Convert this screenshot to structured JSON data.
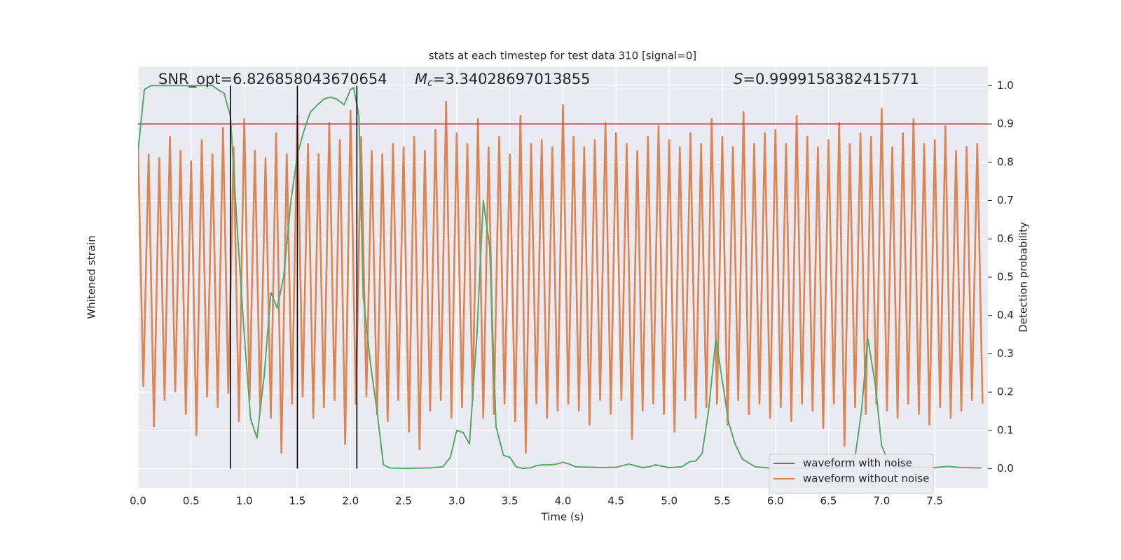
{
  "chart_data": {
    "type": "line",
    "title": "stats at each timestep for test data 310 [signal=0]",
    "x_label": "Time (s)",
    "y_label": "Whitened strain",
    "y2_label": "Detection probability",
    "xlim": [
      0,
      8
    ],
    "xticks": [
      {
        "value": 0,
        "label": "0.0"
      },
      0.5,
      {
        "value": 1,
        "label": "1.0"
      },
      1.5,
      {
        "value": 2,
        "label": "2.0"
      },
      2.5,
      {
        "value": 3,
        "label": "3.0"
      },
      3.5,
      {
        "value": 4,
        "label": "4.0"
      },
      4.5,
      {
        "value": 5,
        "label": "5.0"
      },
      5.5,
      {
        "value": 6,
        "label": "6.0"
      },
      6.5,
      {
        "value": 7,
        "label": "7.0"
      },
      7.5
    ],
    "ylim": [
      -1.2,
      1.2
    ],
    "y2lim": [
      -0.05,
      1.05
    ],
    "y2ticks": [
      {
        "value": 0,
        "label": "0.0"
      },
      0.1,
      0.2,
      0.3,
      0.4,
      0.5,
      0.6,
      0.7,
      0.8,
      0.9,
      {
        "value": 1,
        "label": "1.0"
      }
    ],
    "grid": true,
    "legend": "lower right",
    "annotations": {
      "snr": "SNR_opt=6.826858043670654",
      "mc": {
        "symbol": "M",
        "sub": "c",
        "text": "=3.34028697013855"
      },
      "s": {
        "symbol": "S",
        "text": "=0.9999158382415771"
      }
    },
    "hline": {
      "value": 0.9,
      "color": "#c44e52"
    },
    "vlines": {
      "values": [
        0.87,
        1.5,
        2.06
      ],
      "color": "#000000",
      "span": [
        0,
        1
      ]
    },
    "series": [
      {
        "name": "waveform with noise",
        "color": "#4c72b0"
      },
      {
        "name": "waveform without noise",
        "color": "#dd8452",
        "x": [
          0,
          0.05,
          0.1,
          0.15,
          0.2,
          0.25,
          0.3,
          0.35,
          0.4,
          0.45,
          0.5,
          0.55,
          0.6,
          0.65,
          0.7,
          0.75,
          0.8,
          0.85,
          0.9,
          0.95,
          1,
          1.05,
          1.1,
          1.15,
          1.2,
          1.25,
          1.3,
          1.35,
          1.4,
          1.45,
          1.5,
          1.55,
          1.6,
          1.65,
          1.7,
          1.75,
          1.8,
          1.85,
          1.9,
          1.95,
          2,
          2.05,
          2.1,
          2.15,
          2.2,
          2.25,
          2.3,
          2.35,
          2.4,
          2.45,
          2.5,
          2.55,
          2.6,
          2.65,
          2.7,
          2.75,
          2.8,
          2.85,
          2.9,
          2.95,
          3,
          3.05,
          3.1,
          3.15,
          3.2,
          3.25,
          3.3,
          3.35,
          3.4,
          3.45,
          3.5,
          3.55,
          3.6,
          3.65,
          3.7,
          3.75,
          3.8,
          3.85,
          3.9,
          3.95,
          4,
          4.05,
          4.1,
          4.15,
          4.2,
          4.25,
          4.3,
          4.35,
          4.4,
          4.45,
          4.5,
          4.55,
          4.6,
          4.65,
          4.7,
          4.75,
          4.8,
          4.85,
          4.9,
          4.95,
          5,
          5.05,
          5.1,
          5.15,
          5.2,
          5.25,
          5.3,
          5.35,
          5.4,
          5.45,
          5.5,
          5.55,
          5.6,
          5.65,
          5.7,
          5.75,
          5.8,
          5.85,
          5.9,
          5.95,
          6,
          6.05,
          6.1,
          6.15,
          6.2,
          6.25,
          6.3,
          6.35,
          6.4,
          6.45,
          6.5,
          6.55,
          6.6,
          6.65,
          6.7,
          6.75,
          6.8,
          6.85,
          6.9,
          6.95,
          7,
          7.05,
          7.1,
          7.15,
          7.2,
          7.25,
          7.3,
          7.35,
          7.4,
          7.45,
          7.5,
          7.55,
          7.6,
          7.65,
          7.7,
          7.75,
          7.8,
          7.85,
          7.9,
          7.95
        ],
        "values": [
          0.75,
          -0.62,
          0.7,
          -0.85,
          0.68,
          -0.7,
          0.8,
          -0.65,
          0.72,
          -0.78,
          0.66,
          -0.9,
          0.78,
          -0.68,
          0.7,
          -0.74,
          0.85,
          -0.66,
          0.74,
          -0.82,
          0.9,
          -0.7,
          0.72,
          -0.76,
          0.68,
          -0.8,
          0.82,
          -1.0,
          0.7,
          -0.72,
          0.92,
          -0.68,
          0.76,
          -0.8,
          0.7,
          -0.74,
          0.88,
          -0.7,
          0.78,
          -0.95,
          0.95,
          -0.72,
          0.8,
          -0.68,
          0.72,
          -0.78,
          0.7,
          -0.82,
          0.76,
          -0.7,
          0.74,
          -0.88,
          0.8,
          -0.98,
          0.72,
          -0.76,
          0.84,
          -0.7,
          1.0,
          -0.8,
          0.82,
          -0.74,
          0.76,
          -0.7,
          0.9,
          -0.8,
          0.74,
          -0.78,
          0.8,
          -0.72,
          0.7,
          -0.82,
          0.92,
          -1.0,
          0.76,
          -0.72,
          0.78,
          -0.8,
          0.74,
          -0.76,
          0.98,
          -0.72,
          0.8,
          -0.76,
          0.74,
          -0.84,
          0.78,
          -0.7,
          0.88,
          -0.78,
          0.82,
          -0.7,
          0.76,
          -0.92,
          0.72,
          -0.76,
          0.8,
          -0.72,
          0.86,
          -0.78,
          0.78,
          -0.88,
          0.74,
          -0.7,
          0.82,
          -0.8,
          0.76,
          -0.74,
          0.9,
          -0.72,
          0.8,
          -0.84,
          0.74,
          -0.7,
          0.94,
          -0.78,
          0.76,
          -0.72,
          0.82,
          -0.8,
          0.84,
          -0.74,
          0.76,
          -0.82,
          0.92,
          -0.72,
          0.8,
          -0.76,
          0.74,
          -0.86,
          0.78,
          -0.72,
          0.88,
          -0.96,
          0.76,
          -0.74,
          0.82,
          -0.78,
          0.8,
          -0.72,
          0.96,
          -0.76,
          0.74,
          -0.8,
          0.82,
          -0.72,
          0.9,
          -0.78,
          0.76,
          -0.84,
          0.78,
          -0.74,
          0.86,
          -0.8,
          0.72,
          -0.76,
          0.74,
          -0.7,
          0.76,
          -0.72
        ]
      },
      {
        "color": "#55a868",
        "axis": "y2",
        "x": [
          0,
          0.06,
          0.12,
          0.5,
          0.7,
          0.75,
          0.81,
          0.87,
          0.94,
          1,
          1.06,
          1.12,
          1.19,
          1.25,
          1.31,
          1.37,
          1.44,
          1.5,
          1.56,
          1.62,
          1.69,
          1.75,
          1.81,
          1.87,
          1.94,
          2,
          2.03,
          2.08,
          2.12,
          2.19,
          2.25,
          2.31,
          2.37,
          2.5,
          2.75,
          2.87,
          2.94,
          3,
          3.06,
          3.12,
          3.19,
          3.25,
          3.31,
          3.37,
          3.44,
          3.5,
          3.56,
          3.62,
          3.69,
          3.75,
          3.81,
          3.87,
          3.94,
          4,
          4.06,
          4.12,
          4.25,
          4.37,
          4.5,
          4.62,
          4.75,
          4.81,
          4.87,
          5,
          5.12,
          5.19,
          5.25,
          5.31,
          5.37,
          5.44,
          5.5,
          5.56,
          5.62,
          5.69,
          5.75,
          5.81,
          5.94,
          6,
          6.5,
          6.69,
          6.75,
          6.81,
          6.87,
          6.94,
          7,
          7.06,
          7.12,
          7.5,
          7.62,
          7.75,
          7.94
        ],
        "values": [
          0.83,
          0.99,
          1.0,
          1.0,
          1.0,
          0.99,
          0.98,
          0.92,
          0.6,
          0.35,
          0.13,
          0.08,
          0.25,
          0.46,
          0.42,
          0.5,
          0.7,
          0.82,
          0.88,
          0.93,
          0.95,
          0.965,
          0.97,
          0.965,
          0.95,
          0.99,
          0.995,
          0.92,
          0.45,
          0.27,
          0.15,
          0.01,
          0.002,
          0.001,
          0.002,
          0.005,
          0.03,
          0.1,
          0.095,
          0.065,
          0.35,
          0.7,
          0.58,
          0.11,
          0.035,
          0.03,
          0.005,
          0.001,
          0.002,
          0.008,
          0.01,
          0.01,
          0.012,
          0.017,
          0.012,
          0.005,
          0.004,
          0.003,
          0.004,
          0.012,
          0.003,
          0.005,
          0.01,
          0.003,
          0.005,
          0.018,
          0.02,
          0.04,
          0.15,
          0.34,
          0.23,
          0.12,
          0.065,
          0.025,
          0.015,
          0.005,
          0.002,
          0.002,
          0.002,
          0.005,
          0.03,
          0.15,
          0.34,
          0.22,
          0.06,
          0.02,
          0.005,
          0.003,
          0.006,
          0.003,
          0.002
        ]
      }
    ]
  }
}
